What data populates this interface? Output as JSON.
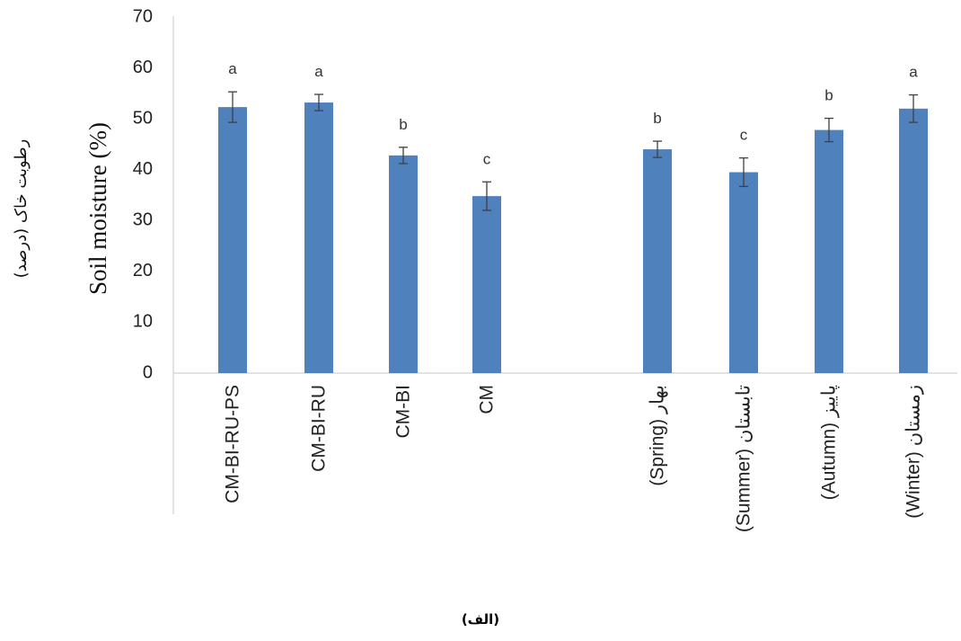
{
  "chart_data": {
    "type": "bar",
    "ylabel": "Soil moisture (%)",
    "ylabel_fa": "رطوبت خاک (درصد)",
    "ylim": [
      0,
      70
    ],
    "yticks": [
      0,
      10,
      20,
      30,
      40,
      50,
      60,
      70
    ],
    "grid": false,
    "bar_color": "#4f81bd",
    "groups": [
      {
        "categories": [
          "CM-BI-RU-PS",
          "CM-BI-RU",
          "CM-BI",
          "CM"
        ],
        "values": [
          52.3,
          53.2,
          42.8,
          34.8
        ],
        "errors": [
          3.0,
          1.6,
          1.6,
          2.8
        ],
        "letters": [
          "a",
          "a",
          "b",
          "c"
        ]
      },
      {
        "categories": [
          "(Spring) بهار",
          "(Summer) تابستان",
          "(Autumn) پاییز",
          "(Winter) زمستان"
        ],
        "values": [
          44.0,
          39.5,
          47.8,
          52.0
        ],
        "errors": [
          1.6,
          2.8,
          2.3,
          2.7
        ],
        "letters": [
          "b",
          "c",
          "b",
          "a"
        ]
      }
    ]
  },
  "caption": "(الف)"
}
